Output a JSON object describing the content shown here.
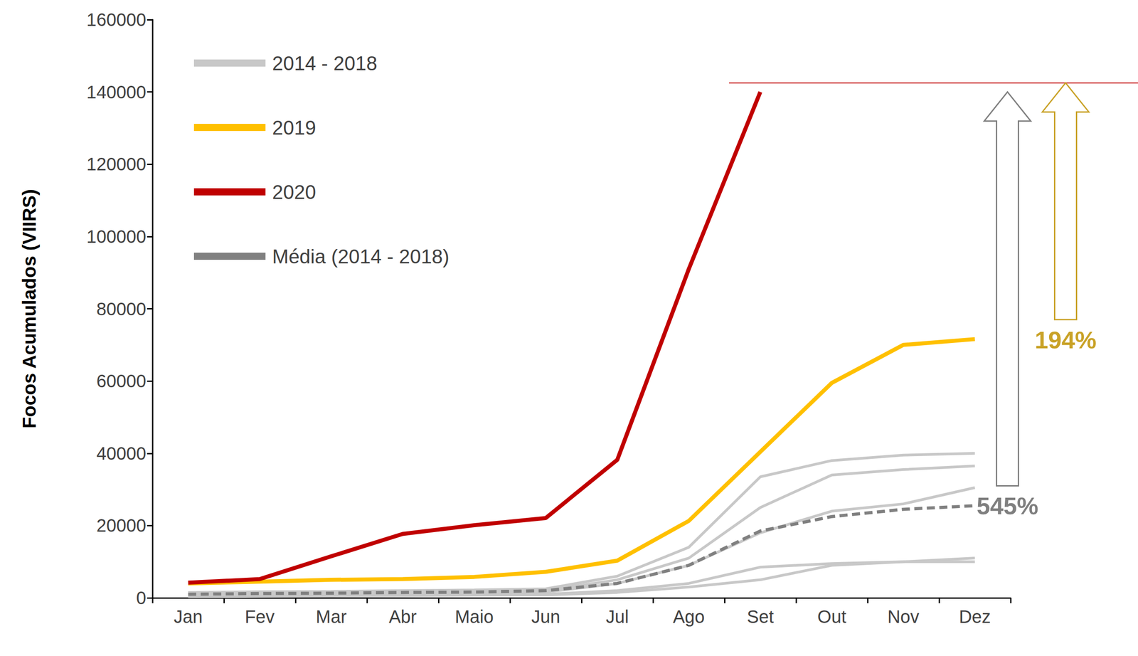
{
  "chart_data": {
    "type": "line",
    "ylabel": "Focos Acumulados (VIIRS)",
    "categories": [
      "Jan",
      "Fev",
      "Mar",
      "Abr",
      "Maio",
      "Jun",
      "Jul",
      "Ago",
      "Set",
      "Out",
      "Nov",
      "Dez"
    ],
    "ylim": [
      0,
      160000
    ],
    "yticks": [
      0,
      20000,
      40000,
      60000,
      80000,
      100000,
      120000,
      140000,
      160000
    ],
    "grid": false,
    "legend": "upper left",
    "series": [
      {
        "name": "2014 - 2018",
        "color": "#c8c8c8",
        "line_style": "solid",
        "values": [
          1500,
          1700,
          1800,
          2000,
          2200,
          2500,
          6000,
          14000,
          33500,
          38000,
          39500,
          40000
        ]
      },
      {
        "name": "2014 - 2018",
        "color": "#c8c8c8",
        "line_style": "solid",
        "values": [
          1000,
          1200,
          1300,
          1500,
          1700,
          2000,
          5000,
          11000,
          25000,
          34000,
          35500,
          36500
        ]
      },
      {
        "name": "2014 - 2018",
        "color": "#c8c8c8",
        "line_style": "solid",
        "values": [
          800,
          900,
          1000,
          1100,
          1300,
          1600,
          4000,
          9000,
          18000,
          24000,
          26000,
          30500
        ]
      },
      {
        "name": "2014 - 2018",
        "color": "#c8c8c8",
        "line_style": "solid",
        "values": [
          500,
          600,
          700,
          800,
          900,
          1000,
          2000,
          4000,
          8500,
          9500,
          10000,
          11000
        ]
      },
      {
        "name": "2014 - 2018",
        "color": "#c8c8c8",
        "line_style": "solid",
        "values": [
          300,
          400,
          500,
          600,
          700,
          800,
          1500,
          3000,
          5000,
          9000,
          10000,
          10000
        ]
      },
      {
        "name": "2019",
        "color": "#ffc000",
        "line_style": "solid",
        "values": [
          4000,
          4500,
          5000,
          5200,
          5800,
          7200,
          10300,
          21300,
          40400,
          59500,
          70000,
          71600
        ]
      },
      {
        "name": "2020",
        "color": "#c00000",
        "line_style": "solid",
        "values": [
          4200,
          5200,
          11500,
          17700,
          20100,
          22100,
          38200,
          91000,
          140000,
          null,
          null,
          null
        ]
      },
      {
        "name": "Média (2014 - 2018)",
        "color": "#808080",
        "line_style": "dashed",
        "values": [
          1000,
          1200,
          1300,
          1500,
          1600,
          2000,
          4000,
          9000,
          18500,
          22500,
          24500,
          25500
        ]
      }
    ],
    "reference_line": {
      "value": 142500,
      "color": "#c00000"
    },
    "annotations": [
      {
        "text": "545%",
        "color": "#7f7f7f",
        "arrow_from": 31000,
        "arrow_to": 140000
      },
      {
        "text": "194%",
        "color": "#c9a227",
        "arrow_from": 77000,
        "arrow_to": 142500
      }
    ]
  }
}
